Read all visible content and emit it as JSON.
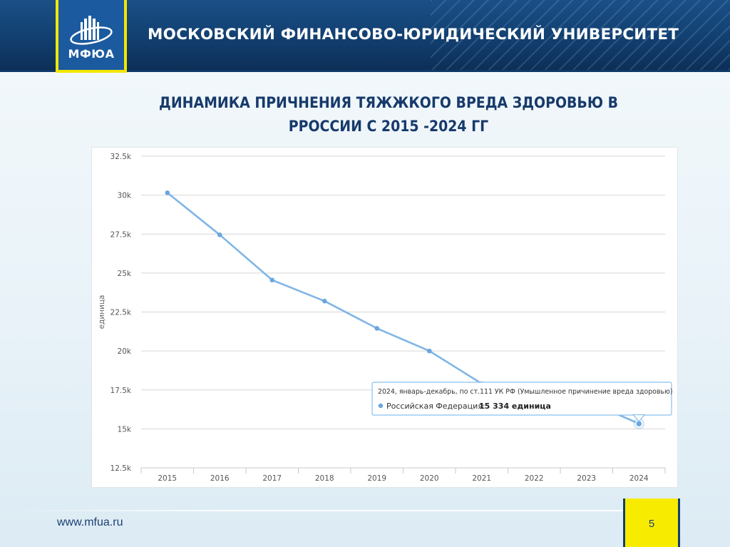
{
  "header": {
    "logo_text": "МФЮА",
    "university_name": "МОСКОВСКИЙ ФИНАНСОВО-ЮРИДИЧЕСКИЙ УНИВЕРСИТЕТ"
  },
  "slide": {
    "title_line1": "ДИНАМИКА ПРИЧНЕНИЯ ТЯЖЖКОГО ВРЕДА ЗДОРОВЬЮ В",
    "title_line2": "РРОССИИ С 2015 -2024 ГГ"
  },
  "footer": {
    "url": "www.mfua.ru",
    "page_number": "5"
  },
  "colors": {
    "header_blue": "#123f70",
    "accent_yellow": "#f7ec00",
    "title_blue": "#173a6b",
    "series_line": "#7fb6e6",
    "series_point": "#6aa7de"
  },
  "chart_data": {
    "type": "line",
    "ylabel": "единица",
    "ylim": [
      12500,
      32500
    ],
    "y_ticks": [
      12500,
      15000,
      17500,
      20000,
      22500,
      25000,
      27500,
      30000,
      32500
    ],
    "y_tick_labels": [
      "12.5k",
      "15k",
      "17.5k",
      "20k",
      "22.5k",
      "25k",
      "27.5k",
      "30k",
      "32.5k"
    ],
    "categories": [
      "2015",
      "2016",
      "2017",
      "2018",
      "2019",
      "2020",
      "2021",
      "2022",
      "2023",
      "2024"
    ],
    "grid": true,
    "series": [
      {
        "name": "Российская Федерация",
        "values": [
          30150,
          27450,
          24550,
          23200,
          21450,
          20000,
          17900,
          17400,
          16800,
          15334
        ]
      }
    ],
    "tooltip": {
      "category_index": 9,
      "header": "2024, январь-декабрь, по ст.111 УК РФ (Умышленное причинение вреда здоровью)",
      "series_label": "Российская Федерация:",
      "value_text": "15 334 единица"
    }
  }
}
